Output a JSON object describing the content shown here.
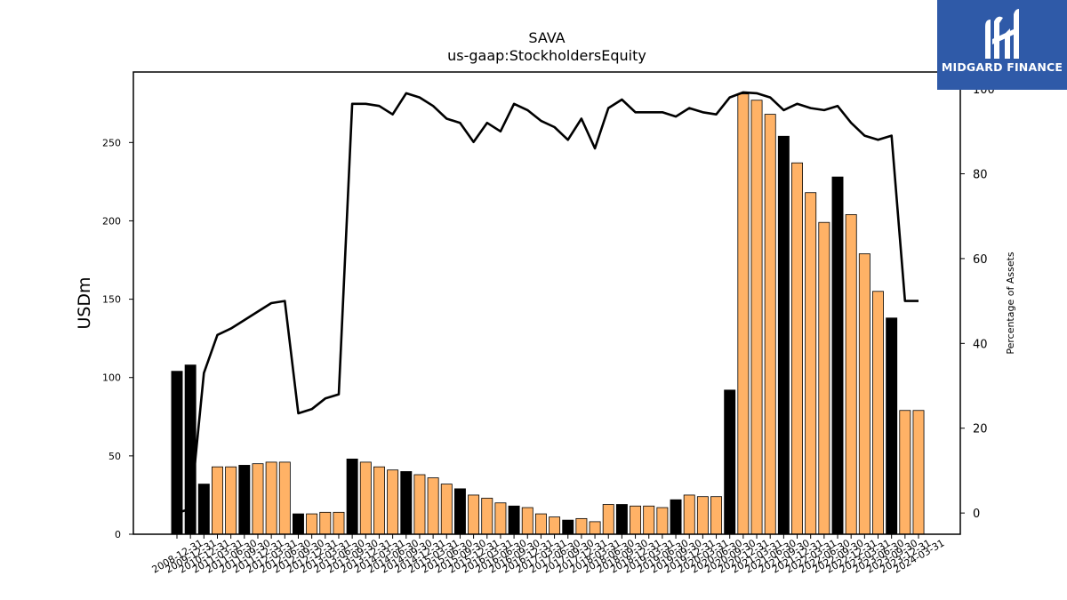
{
  "chart_data": {
    "type": "bar",
    "title": "SAVA",
    "subtitle": "us-gaap:StockholdersEquity",
    "ylabel": "USDm",
    "y2label": "Percentage of Assets",
    "ylim": [
      0,
      295
    ],
    "y2lim": [
      -5,
      104
    ],
    "yticks": [
      0,
      50,
      100,
      150,
      200,
      250
    ],
    "y2ticks": [
      0,
      20,
      40,
      60,
      80,
      100
    ],
    "colors": {
      "annual": "#000000",
      "quarterly": "#ffb266",
      "line": "#000000"
    },
    "categories": [
      "2008-12-31",
      "2009-12-31",
      "2010-12-31",
      "2011-03-31",
      "2011-06-30",
      "2011-09-30",
      "2011-12-31",
      "2012-03-31",
      "2012-06-30",
      "2012-09-30",
      "2012-12-31",
      "2013-03-31",
      "2013-06-30",
      "2013-09-30",
      "2013-12-31",
      "2014-03-31",
      "2014-06-30",
      "2014-09-30",
      "2014-12-31",
      "2015-03-31",
      "2015-06-30",
      "2015-09-30",
      "2015-12-31",
      "2016-03-31",
      "2016-06-30",
      "2016-09-30",
      "2016-12-31",
      "2017-03-31",
      "2017-06-30",
      "2017-09-30",
      "2017-12-31",
      "2018-03-31",
      "2018-06-30",
      "2018-09-30",
      "2018-12-31",
      "2019-03-31",
      "2019-06-30",
      "2019-09-30",
      "2019-12-31",
      "2020-03-31",
      "2020-06-30",
      "2020-09-30",
      "2020-12-31",
      "2021-03-31",
      "2021-06-30",
      "2021-09-30",
      "2021-12-31",
      "2022-03-31",
      "2022-06-30",
      "2022-09-30",
      "2022-12-31",
      "2023-03-31",
      "2023-06-30",
      "2023-09-30",
      "2023-12-31",
      "2024-03-31"
    ],
    "period_type": [
      "annual",
      "annual",
      "annual",
      "quarterly",
      "quarterly",
      "annual",
      "quarterly",
      "quarterly",
      "quarterly",
      "annual",
      "quarterly",
      "quarterly",
      "quarterly",
      "annual",
      "quarterly",
      "quarterly",
      "quarterly",
      "annual",
      "quarterly",
      "quarterly",
      "quarterly",
      "annual",
      "quarterly",
      "quarterly",
      "quarterly",
      "annual",
      "quarterly",
      "quarterly",
      "quarterly",
      "annual",
      "quarterly",
      "quarterly",
      "quarterly",
      "annual",
      "quarterly",
      "quarterly",
      "quarterly",
      "annual",
      "quarterly",
      "quarterly",
      "quarterly",
      "annual",
      "quarterly",
      "quarterly",
      "quarterly",
      "annual",
      "quarterly",
      "quarterly",
      "quarterly",
      "annual",
      "quarterly",
      "quarterly",
      "quarterly",
      "annual",
      "quarterly",
      "quarterly"
    ],
    "values": [
      104,
      108,
      32,
      43,
      43,
      44,
      45,
      46,
      46,
      13,
      13,
      14,
      14,
      48,
      46,
      43,
      41,
      40,
      38,
      36,
      32,
      29,
      25,
      23,
      20,
      18,
      17,
      13,
      11,
      9,
      10,
      8,
      19,
      19,
      18,
      18,
      17,
      22,
      25,
      24,
      24,
      92,
      281,
      277,
      268,
      254,
      237,
      218,
      199,
      228,
      204,
      179,
      155,
      138,
      79,
      79
    ],
    "line_values": [
      0,
      1,
      33,
      42,
      43.5,
      45.5,
      47.5,
      49.5,
      50,
      23.5,
      24.5,
      27,
      28,
      96.5,
      96.5,
      96,
      94,
      99,
      98,
      96,
      93,
      92,
      87.5,
      92,
      90,
      96.5,
      95,
      92.5,
      91,
      88,
      93,
      86,
      95.5,
      97.5,
      94.5,
      94.5,
      94.5,
      93.5,
      95.5,
      94.5,
      94,
      98,
      99.2,
      99,
      98,
      95,
      96.5,
      95.5,
      95,
      96,
      92,
      89,
      88,
      89,
      50,
      50
    ]
  }
}
